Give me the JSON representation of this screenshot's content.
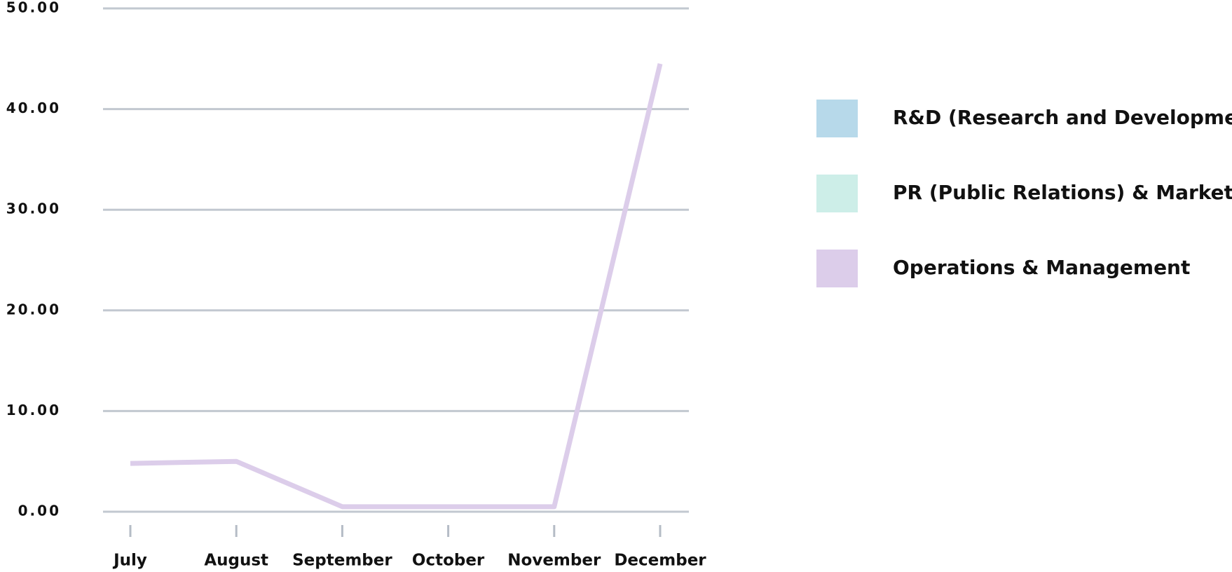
{
  "chart_data": {
    "type": "line",
    "categories": [
      "July",
      "August",
      "September",
      "October",
      "November",
      "December"
    ],
    "series": [
      {
        "name": "R&D (Research and Development)",
        "color": "#b7d9ea",
        "values": [
          null,
          null,
          null,
          null,
          null,
          null
        ]
      },
      {
        "name": "PR (Public Relations) & Marketing",
        "color": "#cdeee8",
        "values": [
          null,
          null,
          null,
          null,
          null,
          null
        ]
      },
      {
        "name": "Operations & Management",
        "color": "#dccdea",
        "values": [
          4.8,
          5,
          0.5,
          0.5,
          0.5,
          44.5
        ]
      }
    ],
    "ylim": [
      0,
      50
    ],
    "yticks": [
      {
        "value": 0,
        "label": "0.00"
      },
      {
        "value": 10,
        "label": "10.00"
      },
      {
        "value": 20,
        "label": "20.00"
      },
      {
        "value": 30,
        "label": "30.00"
      },
      {
        "value": 40,
        "label": "40.00"
      },
      {
        "value": 50,
        "label": "50.00"
      }
    ],
    "grid": true,
    "legend": "right"
  }
}
